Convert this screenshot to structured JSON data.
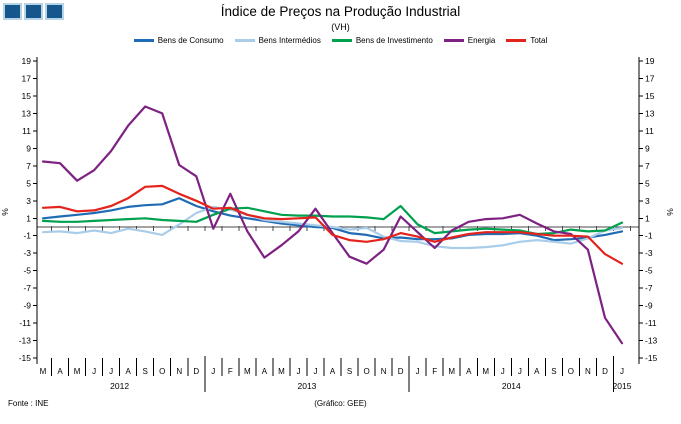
{
  "header": {
    "title": "Índice de Preços na Produção Industrial",
    "subtitle": "(VH)"
  },
  "footer": {
    "source": "Fonte : INE",
    "credit": "(Gráfico: GEE)"
  },
  "axes": {
    "y_left_label": "%",
    "y_right_label": "%",
    "y_ticks": [
      19,
      17,
      15,
      13,
      11,
      9,
      7,
      5,
      3,
      1,
      -1,
      -3,
      -5,
      -7,
      -9,
      -11,
      -13,
      -15
    ]
  },
  "chart_data": {
    "type": "line",
    "title": "Índice de Preços na Produção Industrial",
    "subtitle": "(VH)",
    "ylabel": "%",
    "ylim": [
      -15,
      19
    ],
    "grid": "zero-line-only",
    "legend_position": "top",
    "x_months": [
      "M",
      "A",
      "M",
      "J",
      "J",
      "A",
      "S",
      "O",
      "N",
      "D",
      "J",
      "F",
      "M",
      "A",
      "M",
      "J",
      "J",
      "A",
      "S",
      "O",
      "N",
      "D",
      "J",
      "F",
      "M",
      "A",
      "M",
      "J",
      "J",
      "A",
      "S",
      "O",
      "N",
      "D",
      "J"
    ],
    "x_years": [
      {
        "label": "2012",
        "start": 0,
        "end": 9
      },
      {
        "label": "2013",
        "start": 10,
        "end": 21
      },
      {
        "label": "2014",
        "start": 22,
        "end": 33
      },
      {
        "label": "2015",
        "start": 34,
        "end": 34
      }
    ],
    "series": [
      {
        "name": "Bens de Consumo",
        "color": "#1F6CB4",
        "values": [
          1.0,
          1.2,
          1.4,
          1.6,
          1.9,
          2.3,
          2.5,
          2.6,
          3.3,
          2.4,
          1.8,
          1.3,
          1.0,
          0.7,
          0.4,
          0.2,
          0.0,
          -0.1,
          -0.7,
          -0.9,
          -1.3,
          -1.2,
          -1.4,
          -1.4,
          -1.3,
          -0.9,
          -0.8,
          -0.8,
          -0.7,
          -1.0,
          -1.5,
          -1.4,
          -1.2,
          -0.9,
          -0.5
        ]
      },
      {
        "name": "Bens Intermédios",
        "color": "#A9CDE9",
        "values": [
          -0.6,
          -0.5,
          -0.7,
          -0.4,
          -0.7,
          -0.2,
          -0.5,
          -0.9,
          0.3,
          1.6,
          2.3,
          2.0,
          1.4,
          0.8,
          0.6,
          0.4,
          0.2,
          0.0,
          -0.3,
          -0.1,
          -1.1,
          -1.6,
          -1.7,
          -2.2,
          -2.4,
          -2.4,
          -2.3,
          -2.1,
          -1.7,
          -1.5,
          -1.7,
          -1.9,
          -1.3,
          -0.4,
          -0.1
        ]
      },
      {
        "name": "Bens de Investimento",
        "color": "#00A14E",
        "values": [
          0.7,
          0.6,
          0.6,
          0.7,
          0.8,
          0.9,
          1.0,
          0.8,
          0.7,
          0.6,
          1.4,
          2.1,
          2.2,
          1.8,
          1.4,
          1.3,
          1.3,
          1.2,
          1.2,
          1.1,
          0.9,
          2.4,
          0.3,
          -0.7,
          -0.5,
          -0.3,
          -0.2,
          -0.3,
          -0.4,
          -0.8,
          -0.7,
          -0.3,
          -0.5,
          -0.4,
          0.5
        ]
      },
      {
        "name": "Energia",
        "color": "#7D2182",
        "values": [
          7.5,
          7.3,
          5.3,
          6.5,
          8.7,
          11.6,
          13.8,
          13.0,
          7.1,
          5.8,
          -0.2,
          3.8,
          -0.5,
          -3.5,
          -2.1,
          -0.5,
          2.1,
          -0.7,
          -3.4,
          -4.2,
          -2.6,
          1.2,
          -0.6,
          -2.4,
          -0.4,
          0.6,
          0.9,
          1.0,
          1.4,
          0.4,
          -0.5,
          -0.8,
          -2.6,
          -10.4,
          -13.3
        ]
      },
      {
        "name": "Total",
        "color": "#E3231C",
        "values": [
          2.2,
          2.3,
          1.8,
          1.9,
          2.4,
          3.3,
          4.6,
          4.7,
          3.8,
          3.0,
          2.1,
          2.2,
          1.4,
          1.0,
          0.9,
          1.0,
          1.1,
          -0.9,
          -1.5,
          -1.7,
          -1.4,
          -0.7,
          -1.1,
          -1.7,
          -1.2,
          -0.8,
          -0.6,
          -0.6,
          -0.6,
          -0.8,
          -1.0,
          -1.0,
          -1.1,
          -3.1,
          -4.2
        ]
      }
    ]
  }
}
